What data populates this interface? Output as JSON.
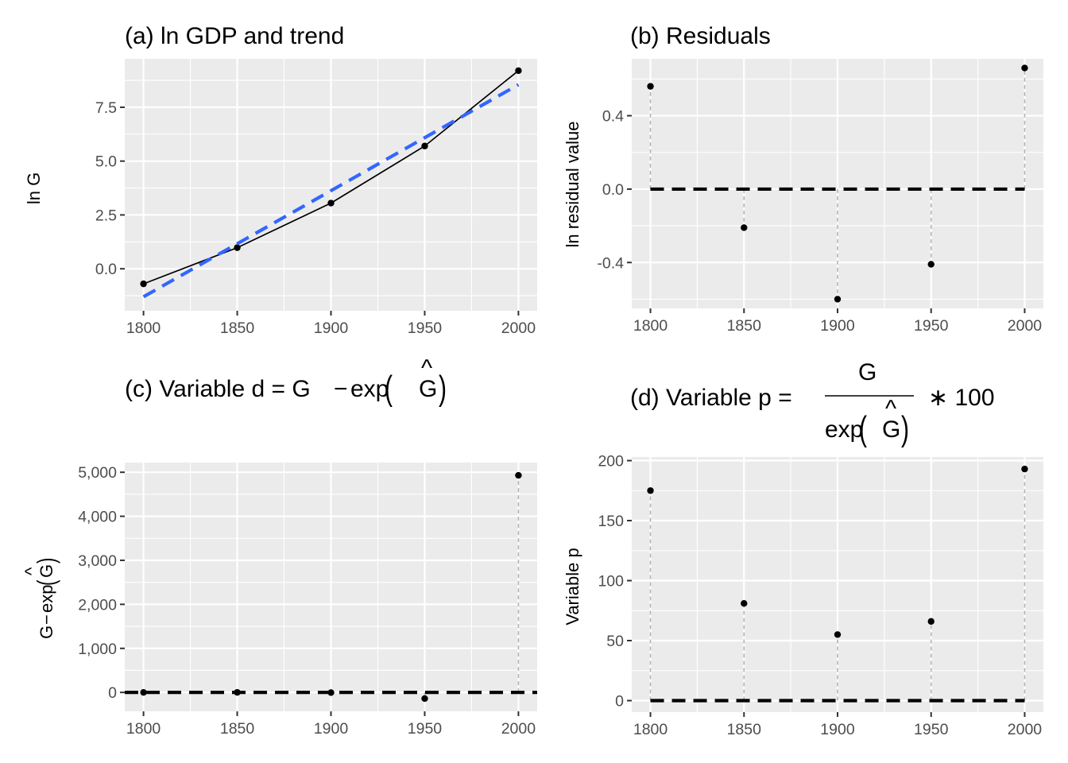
{
  "colors": {
    "trend": "#3366ff",
    "series": "#000000",
    "stem": "#b3b3b3",
    "zero_line": "#000000",
    "panel_background": "#ebebeb"
  },
  "chart_data": [
    {
      "type": "line",
      "title": "(a) ln GDP and trend",
      "xlabel": "",
      "ylabel": "ln G",
      "xlim": [
        1790,
        2010
      ],
      "ylim": [
        -1.95,
        9.75
      ],
      "x_ticks": [
        1800,
        1850,
        1900,
        1950,
        2000
      ],
      "x_tick_labels": [
        "1800",
        "1850",
        "1900",
        "1950",
        "2000"
      ],
      "y_ticks": [
        0,
        2.5,
        5,
        7.5
      ],
      "y_tick_labels": [
        "0.0",
        "2.5",
        "5.0",
        "7.5"
      ],
      "grid": true,
      "series": [
        {
          "x": [
            1800,
            1850,
            1900,
            1950,
            2000
          ],
          "y": [
            -0.7,
            0.98,
            3.05,
            5.7,
            9.2
          ],
          "style": "line+points"
        },
        {
          "x": [
            1800,
            2000
          ],
          "y": [
            -1.3,
            8.55
          ],
          "style": "dashed"
        }
      ]
    },
    {
      "type": "scatter",
      "title": "(b) Residuals",
      "xlabel": "",
      "ylabel": "ln residual value",
      "xlim": [
        1790,
        2010
      ],
      "ylim": [
        -0.65,
        0.71
      ],
      "x_ticks": [
        1800,
        1850,
        1900,
        1950,
        2000
      ],
      "x_tick_labels": [
        "1800",
        "1850",
        "1900",
        "1950",
        "2000"
      ],
      "y_ticks": [
        -0.4,
        0,
        0.4
      ],
      "y_tick_labels": [
        "-0.4",
        "0.0",
        "0.4"
      ],
      "grid": true,
      "reference_line": 0,
      "series": [
        {
          "x": [
            1800,
            1850,
            1900,
            1950,
            2000
          ],
          "y": [
            0.56,
            -0.21,
            -0.6,
            -0.41,
            0.66
          ],
          "style": "points+stems"
        }
      ]
    },
    {
      "type": "scatter",
      "title": "(c) Variable d = G − exp(Ĝ)",
      "xlabel": "",
      "ylabel": "G − exp(Ĝ)",
      "xlim": [
        1790,
        2010
      ],
      "ylim": [
        -430,
        5220
      ],
      "x_ticks": [
        1800,
        1850,
        1900,
        1950,
        2000
      ],
      "x_tick_labels": [
        "1800",
        "1850",
        "1900",
        "1950",
        "2000"
      ],
      "y_ticks": [
        0,
        1000,
        2000,
        3000,
        4000,
        5000
      ],
      "y_tick_labels": [
        "0",
        "1,000",
        "2,000",
        "3,000",
        "4,000",
        "5,000"
      ],
      "grid": true,
      "reference_line": 0,
      "series": [
        {
          "x": [
            1800,
            1850,
            1900,
            1950,
            2000
          ],
          "y": [
            0.2,
            0.5,
            -5,
            -140,
            4930
          ],
          "style": "points+stems"
        }
      ]
    },
    {
      "type": "scatter",
      "title": "(d) Variable p = G / exp(Ĝ) ∗ 100",
      "xlabel": "",
      "ylabel": "Variable p",
      "xlim": [
        1790,
        2010
      ],
      "ylim": [
        -9.6,
        203
      ],
      "x_ticks": [
        1800,
        1850,
        1900,
        1950,
        2000
      ],
      "x_tick_labels": [
        "1800",
        "1850",
        "1900",
        "1950",
        "2000"
      ],
      "y_ticks": [
        0,
        50,
        100,
        150,
        200
      ],
      "y_tick_labels": [
        "0",
        "50",
        "100",
        "150",
        "200"
      ],
      "grid": true,
      "reference_line": 0,
      "series": [
        {
          "x": [
            1800,
            1850,
            1900,
            1950,
            2000
          ],
          "y": [
            175,
            81,
            55,
            66,
            193
          ],
          "style": "points+stems"
        }
      ]
    }
  ],
  "titles": {
    "a": "(a) ln GDP and trend",
    "b": "(b) Residuals",
    "c_prefix": "(c) Variable d = G",
    "d_prefix": "(d) Variable p =",
    "d_suffix": "∗ 100"
  },
  "math": {
    "minus": "−",
    "exp": "exp",
    "G": "G",
    "hat": "^",
    "lparen": "(",
    "rparen": ")"
  },
  "axis_labels": {
    "a_y": "ln G",
    "b_y": "ln residual value",
    "c_y_G": "G",
    "d_y": "Variable p"
  }
}
